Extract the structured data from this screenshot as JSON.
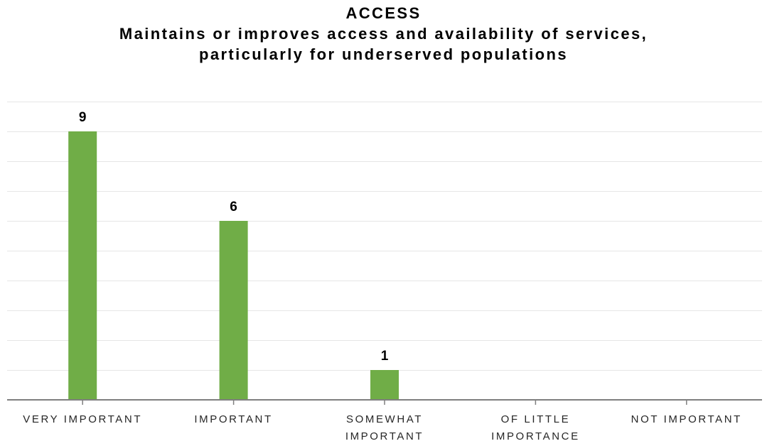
{
  "chart_data": {
    "type": "bar",
    "title": "ACCESS",
    "subtitle_lines": [
      "Maintains or improves access and availability of services,",
      "particularly for underserved populations"
    ],
    "categories": [
      [
        "VERY IMPORTANT"
      ],
      [
        "IMPORTANT"
      ],
      [
        "SOMEWHAT",
        "IMPORTANT"
      ],
      [
        "OF LITTLE",
        "IMPORTANCE"
      ],
      [
        "NOT IMPORTANT"
      ]
    ],
    "values": [
      9,
      6,
      1,
      0,
      0
    ],
    "data_labels": [
      "9",
      "6",
      "1",
      "",
      ""
    ],
    "ylim": [
      0,
      10
    ],
    "grid": true,
    "legend": "none",
    "xlabel": "",
    "ylabel": "",
    "colors": {
      "bar": "#70ad47",
      "grid": "#e6e6e6",
      "axis": "#7f7f7f"
    }
  }
}
